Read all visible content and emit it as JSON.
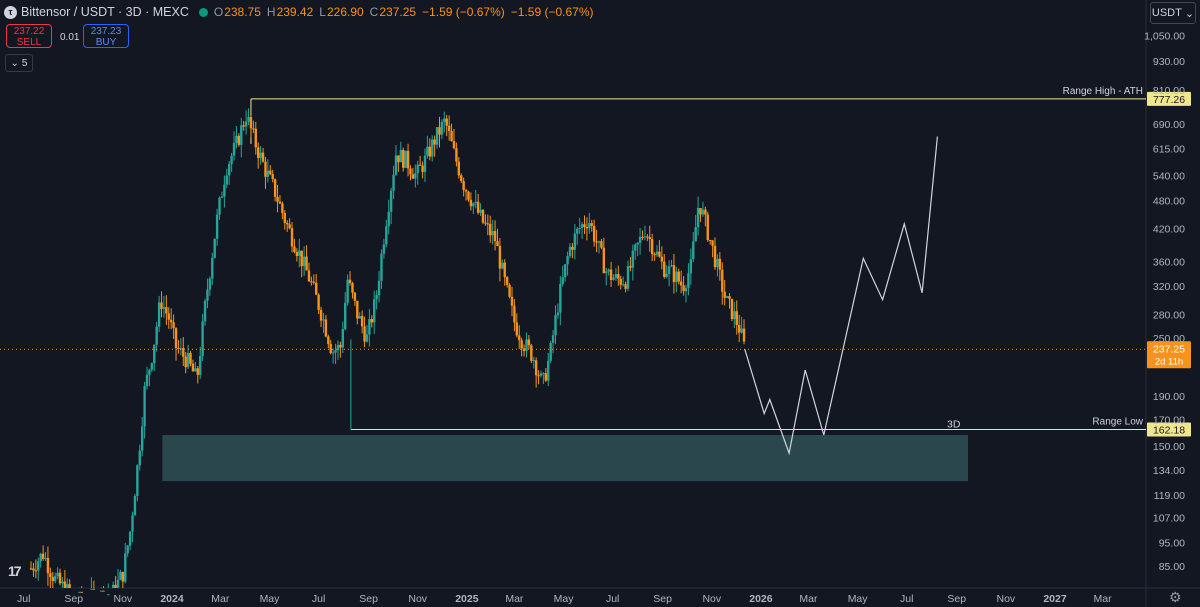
{
  "header": {
    "symbol": "Bittensor / USDT · 3D · MEXC",
    "open_label": "O",
    "open": "238.75",
    "high_label": "H",
    "high": "239.42",
    "low_label": "L",
    "low": "226.90",
    "close_label": "C",
    "close": "237.25",
    "change": "−1.59 (−0.67%)",
    "change2": "−1.59 (−0.67%)",
    "logo_icon": "bittensor-logo-icon",
    "status_color": "#089981"
  },
  "trade": {
    "sell_price": "237.22",
    "sell_label": "SELL",
    "spread": "0.01",
    "buy_price": "237.23",
    "buy_label": "BUY"
  },
  "indicator": {
    "icon": "chevron-down-icon",
    "count": "5"
  },
  "currency": {
    "label": "USDT",
    "icon": "chevron-down-icon"
  },
  "colors": {
    "background": "#131722",
    "up": "#26a69a",
    "down": "#f7931a",
    "range_line": "#f0e68c",
    "zone": "#2e4d52",
    "projection": "#d1d4dc",
    "price_label": "#f7931a"
  },
  "chart_data": {
    "type": "candlestick",
    "symbol": "Bittensor / USDT",
    "interval": "3D",
    "scale": "log",
    "ylim": [
      78,
      1150
    ],
    "xlim": [
      "2023-07-01",
      "2027-04-01"
    ],
    "y_ticks": [
      "1,050.00",
      "930.00",
      "810.00",
      "690.00",
      "615.00",
      "540.00",
      "480.00",
      "420.00",
      "360.00",
      "320.00",
      "280.00",
      "250.00",
      "190.00",
      "170.00",
      "150.00",
      "134.00",
      "119.00",
      "107.00",
      "95.00",
      "85.00"
    ],
    "x_ticks": [
      {
        "label": "Jul",
        "date": "2023-07-01"
      },
      {
        "label": "Sep",
        "date": "2023-09-01"
      },
      {
        "label": "Nov",
        "date": "2023-11-01"
      },
      {
        "label": "2024",
        "date": "2024-01-01",
        "bold": true
      },
      {
        "label": "Mar",
        "date": "2024-03-01"
      },
      {
        "label": "May",
        "date": "2024-05-01"
      },
      {
        "label": "Jul",
        "date": "2024-07-01"
      },
      {
        "label": "Sep",
        "date": "2024-09-01"
      },
      {
        "label": "Nov",
        "date": "2024-11-01"
      },
      {
        "label": "2025",
        "date": "2025-01-01",
        "bold": true
      },
      {
        "label": "Mar",
        "date": "2025-03-01"
      },
      {
        "label": "May",
        "date": "2025-05-01"
      },
      {
        "label": "Jul",
        "date": "2025-07-01"
      },
      {
        "label": "Sep",
        "date": "2025-09-01"
      },
      {
        "label": "Nov",
        "date": "2025-11-01"
      },
      {
        "label": "2026",
        "date": "2026-01-01",
        "bold": true
      },
      {
        "label": "Mar",
        "date": "2026-03-01"
      },
      {
        "label": "May",
        "date": "2026-05-01"
      },
      {
        "label": "Jul",
        "date": "2026-07-01"
      },
      {
        "label": "Sep",
        "date": "2026-09-01"
      },
      {
        "label": "Nov",
        "date": "2026-11-01"
      },
      {
        "label": "2027",
        "date": "2027-01-01",
        "bold": true
      },
      {
        "label": "Mar",
        "date": "2027-03-01"
      }
    ],
    "price_path": [
      [
        "2023-07-10",
        84
      ],
      [
        "2023-07-25",
        90
      ],
      [
        "2023-08-08",
        80
      ],
      [
        "2023-09-05",
        72
      ],
      [
        "2023-10-20",
        75
      ],
      [
        "2023-11-01",
        82
      ],
      [
        "2023-11-10",
        100
      ],
      [
        "2023-11-20",
        140
      ],
      [
        "2023-11-28",
        195
      ],
      [
        "2023-12-08",
        235
      ],
      [
        "2023-12-18",
        300
      ],
      [
        "2023-12-28",
        275
      ],
      [
        "2024-01-06",
        240
      ],
      [
        "2024-01-20",
        225
      ],
      [
        "2024-02-01",
        205
      ],
      [
        "2024-02-12",
        300
      ],
      [
        "2024-02-25",
        430
      ],
      [
        "2024-03-08",
        560
      ],
      [
        "2024-03-20",
        620
      ],
      [
        "2024-04-02",
        720
      ],
      [
        "2024-04-12",
        640
      ],
      [
        "2024-04-25",
        560
      ],
      [
        "2024-05-08",
        500
      ],
      [
        "2024-05-22",
        430
      ],
      [
        "2024-06-05",
        380
      ],
      [
        "2024-06-20",
        330
      ],
      [
        "2024-07-05",
        280
      ],
      [
        "2024-07-18",
        235
      ],
      [
        "2024-07-28",
        240
      ],
      [
        "2024-08-06",
        330
      ],
      [
        "2024-08-18",
        280
      ],
      [
        "2024-08-30",
        250
      ],
      [
        "2024-09-10",
        300
      ],
      [
        "2024-09-22",
        430
      ],
      [
        "2024-10-05",
        600
      ],
      [
        "2024-10-18",
        580
      ],
      [
        "2024-10-30",
        540
      ],
      [
        "2024-11-10",
        580
      ],
      [
        "2024-11-22",
        640
      ],
      [
        "2024-12-05",
        700
      ],
      [
        "2024-12-16",
        600
      ],
      [
        "2024-12-28",
        520
      ],
      [
        "2025-01-10",
        470
      ],
      [
        "2025-01-22",
        430
      ],
      [
        "2025-02-05",
        400
      ],
      [
        "2025-02-18",
        320
      ],
      [
        "2025-03-01",
        270
      ],
      [
        "2025-03-12",
        245
      ],
      [
        "2025-03-24",
        230
      ],
      [
        "2025-04-05",
        200
      ],
      [
        "2025-04-14",
        230
      ],
      [
        "2025-04-25",
        300
      ],
      [
        "2025-05-08",
        380
      ],
      [
        "2025-05-20",
        420
      ],
      [
        "2025-06-01",
        440
      ],
      [
        "2025-06-12",
        390
      ],
      [
        "2025-06-24",
        340
      ],
      [
        "2025-07-06",
        330
      ],
      [
        "2025-07-18",
        330
      ],
      [
        "2025-07-30",
        380
      ],
      [
        "2025-08-10",
        420
      ],
      [
        "2025-08-22",
        380
      ],
      [
        "2025-09-02",
        350
      ],
      [
        "2025-09-14",
        340
      ],
      [
        "2025-09-26",
        320
      ],
      [
        "2025-10-06",
        350
      ],
      [
        "2025-10-16",
        480
      ],
      [
        "2025-10-26",
        420
      ],
      [
        "2025-11-06",
        360
      ],
      [
        "2025-11-18",
        300
      ],
      [
        "2025-11-28",
        280
      ],
      [
        "2025-12-06",
        260
      ],
      [
        "2025-12-12",
        237.25
      ]
    ],
    "last_price": "237.25",
    "countdown": "2d 11h",
    "annotations": [
      {
        "type": "hline",
        "label": "Range High - ATH",
        "value": 777.26,
        "value_label": "777.26",
        "start": "2024-04-08"
      },
      {
        "type": "hline",
        "label": "Range Low",
        "value": 162.18,
        "value_label": "162.18",
        "start": "2024-08-10",
        "interval_label": "3D"
      },
      {
        "type": "zone",
        "from": "2023-12-20",
        "to": "2026-09-15",
        "low": 127,
        "high": 158
      }
    ],
    "projection": [
      [
        "2025-12-12",
        237.25
      ],
      [
        "2026-01-05",
        175
      ],
      [
        "2026-01-12",
        187
      ],
      [
        "2026-02-05",
        145
      ],
      [
        "2026-02-25",
        215
      ],
      [
        "2026-03-20",
        158
      ],
      [
        "2026-05-08",
        365
      ],
      [
        "2026-06-01",
        300
      ],
      [
        "2026-06-28",
        430
      ],
      [
        "2026-07-20",
        310
      ],
      [
        "2026-08-08",
        650
      ]
    ]
  }
}
